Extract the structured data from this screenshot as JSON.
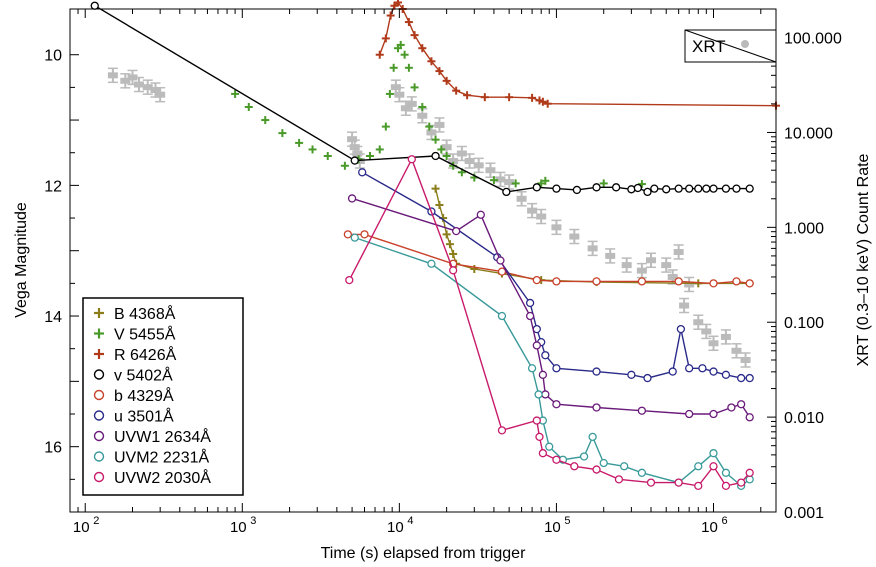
{
  "chart_data": {
    "type": "scatter",
    "xlabel": "Time (s) elapsed from trigger",
    "ylabel_left": "Vega Magnitude",
    "ylabel_right": "XRT (0.3–10 keV) Count Rate",
    "x_scale": "log",
    "x_range": [
      80,
      2500000
    ],
    "y_range_left": [
      17.0,
      9.3
    ],
    "y_range_right_log": [
      0.001,
      200
    ],
    "x_ticks": [
      {
        "v": 100,
        "b": "10",
        "e": "2"
      },
      {
        "v": 1000,
        "b": "10",
        "e": "3"
      },
      {
        "v": 10000,
        "b": "10",
        "e": "4"
      },
      {
        "v": 100000,
        "b": "10",
        "e": "5"
      },
      {
        "v": 1000000,
        "b": "10",
        "e": "6"
      }
    ],
    "y_ticks_left": [
      "10",
      "12",
      "14",
      "16"
    ],
    "y_ticks_right": [
      "100.000",
      "10.000",
      "1.000",
      "0.100",
      "0.010",
      "0.001"
    ],
    "xrt_legend": "XRT",
    "legend_position": "lower-left",
    "series": [
      {
        "name": "B 4368Å",
        "color": "#8B7D1A",
        "marker": "plus",
        "connect": true,
        "points": [
          [
            17000,
            12.05
          ],
          [
            18000,
            12.3
          ],
          [
            19000,
            12.5
          ],
          [
            20000,
            12.75
          ],
          [
            21000,
            12.9
          ],
          [
            22000,
            13.05
          ],
          [
            23000,
            13.2
          ],
          [
            30000,
            13.28
          ],
          [
            45000,
            13.35
          ],
          [
            80000,
            13.45
          ],
          [
            180000,
            13.48
          ],
          [
            800000,
            13.5
          ],
          [
            1700000,
            13.5
          ]
        ]
      },
      {
        "name": "V 5455Å",
        "color": "#4A9A2A",
        "marker": "plus",
        "connect": false,
        "points": [
          [
            900,
            10.6
          ],
          [
            1100,
            10.8
          ],
          [
            1400,
            11.0
          ],
          [
            1800,
            11.2
          ],
          [
            2300,
            11.35
          ],
          [
            2800,
            11.45
          ],
          [
            3500,
            11.55
          ],
          [
            4500,
            11.7
          ],
          [
            5500,
            11.6
          ],
          [
            6500,
            11.55
          ],
          [
            7500,
            11.45
          ],
          [
            8200,
            11.1
          ],
          [
            8700,
            10.6
          ],
          [
            9200,
            10.2
          ],
          [
            9800,
            9.9
          ],
          [
            10200,
            9.85
          ],
          [
            10800,
            10.0
          ],
          [
            11500,
            10.2
          ],
          [
            12500,
            10.5
          ],
          [
            14000,
            10.8
          ],
          [
            15500,
            11.1
          ],
          [
            17000,
            11.3
          ],
          [
            18500,
            11.45
          ],
          [
            20000,
            11.55
          ],
          [
            22000,
            11.7
          ],
          [
            25000,
            11.8
          ],
          [
            30000,
            11.88
          ],
          [
            40000,
            11.92
          ],
          [
            55000,
            11.97
          ],
          [
            80000,
            11.97
          ],
          [
            85000,
            11.93
          ],
          [
            200000,
            11.97
          ],
          [
            350000,
            11.98
          ]
        ]
      },
      {
        "name": "R 6426Å",
        "color": "#B03A1A",
        "marker": "plus",
        "connect": true,
        "points": [
          [
            7500,
            10.0
          ],
          [
            8200,
            9.75
          ],
          [
            8800,
            9.4
          ],
          [
            9300,
            9.25
          ],
          [
            9800,
            9.2
          ],
          [
            10500,
            9.3
          ],
          [
            11500,
            9.5
          ],
          [
            12500,
            9.7
          ],
          [
            14000,
            9.9
          ],
          [
            16000,
            10.1
          ],
          [
            18000,
            10.25
          ],
          [
            20000,
            10.4
          ],
          [
            23000,
            10.55
          ],
          [
            27000,
            10.62
          ],
          [
            35000,
            10.65
          ],
          [
            50000,
            10.65
          ],
          [
            70000,
            10.66
          ],
          [
            78000,
            10.7
          ],
          [
            82000,
            10.72
          ],
          [
            88000,
            10.75
          ],
          [
            2500000,
            10.78
          ]
        ]
      },
      {
        "name": "v 5402Å",
        "color": "#000000",
        "marker": "circle",
        "connect": true,
        "points": [
          [
            115,
            9.25
          ],
          [
            5200,
            11.62
          ],
          [
            17000,
            11.55
          ],
          [
            48000,
            12.1
          ],
          [
            75000,
            12.03
          ],
          [
            100000,
            12.05
          ],
          [
            135000,
            12.07
          ],
          [
            180000,
            12.03
          ],
          [
            240000,
            12.03
          ],
          [
            300000,
            12.06
          ],
          [
            330000,
            12.04
          ],
          [
            380000,
            12.1
          ],
          [
            420000,
            12.05
          ],
          [
            500000,
            12.06
          ],
          [
            600000,
            12.05
          ],
          [
            700000,
            12.05
          ],
          [
            800000,
            12.05
          ],
          [
            900000,
            12.05
          ],
          [
            1000000,
            12.05
          ],
          [
            1200000,
            12.05
          ],
          [
            1400000,
            12.05
          ],
          [
            1700000,
            12.05
          ]
        ]
      },
      {
        "name": "b 4329Å",
        "color": "#C8402A",
        "marker": "circle",
        "connect": true,
        "points": [
          [
            4700,
            12.75
          ],
          [
            6000,
            12.75
          ],
          [
            22000,
            13.2
          ],
          [
            45000,
            13.32
          ],
          [
            75000,
            13.45
          ],
          [
            100000,
            13.47
          ],
          [
            180000,
            13.47
          ],
          [
            350000,
            13.47
          ],
          [
            600000,
            13.47
          ],
          [
            1000000,
            13.5
          ],
          [
            1400000,
            13.47
          ],
          [
            1700000,
            13.5
          ]
        ]
      },
      {
        "name": "u 3501Å",
        "color": "#2A2A8A",
        "marker": "circle",
        "connect": true,
        "points": [
          [
            5800,
            11.8
          ],
          [
            16000,
            12.4
          ],
          [
            42000,
            13.1
          ],
          [
            68000,
            13.8
          ],
          [
            75000,
            14.2
          ],
          [
            80000,
            14.4
          ],
          [
            85000,
            14.6
          ],
          [
            100000,
            14.8
          ],
          [
            180000,
            14.85
          ],
          [
            300000,
            14.9
          ],
          [
            380000,
            14.95
          ],
          [
            550000,
            14.85
          ],
          [
            620000,
            14.2
          ],
          [
            700000,
            14.8
          ],
          [
            850000,
            14.8
          ],
          [
            1000000,
            14.85
          ],
          [
            1200000,
            14.9
          ],
          [
            1500000,
            14.95
          ],
          [
            1700000,
            14.95
          ]
        ]
      },
      {
        "name": "UVW1 2634Å",
        "color": "#6A1A7A",
        "marker": "circle",
        "connect": true,
        "points": [
          [
            5000,
            12.2
          ],
          [
            23000,
            12.7
          ],
          [
            33000,
            12.45
          ],
          [
            44000,
            13.15
          ],
          [
            68000,
            14.0
          ],
          [
            75000,
            14.45
          ],
          [
            82000,
            14.9
          ],
          [
            85000,
            15.2
          ],
          [
            100000,
            15.35
          ],
          [
            180000,
            15.4
          ],
          [
            350000,
            15.45
          ],
          [
            700000,
            15.5
          ],
          [
            1000000,
            15.5
          ],
          [
            1300000,
            15.4
          ],
          [
            1500000,
            15.35
          ],
          [
            1700000,
            15.55
          ]
        ]
      },
      {
        "name": "UVM2 2231Å",
        "color": "#3A9A9A",
        "marker": "circle",
        "connect": true,
        "points": [
          [
            5200,
            12.8
          ],
          [
            16000,
            13.2
          ],
          [
            45000,
            14.0
          ],
          [
            70000,
            14.8
          ],
          [
            77000,
            15.2
          ],
          [
            82000,
            15.6
          ],
          [
            90000,
            16.0
          ],
          [
            110000,
            16.2
          ],
          [
            150000,
            16.15
          ],
          [
            170000,
            15.85
          ],
          [
            200000,
            16.25
          ],
          [
            270000,
            16.3
          ],
          [
            350000,
            16.4
          ],
          [
            600000,
            16.55
          ],
          [
            800000,
            16.3
          ],
          [
            1000000,
            16.1
          ],
          [
            1200000,
            16.4
          ],
          [
            1500000,
            16.6
          ],
          [
            1700000,
            16.5
          ]
        ]
      },
      {
        "name": "UVW2 2030Å",
        "color": "#C81A6A",
        "marker": "circle",
        "connect": true,
        "points": [
          [
            4800,
            13.45
          ],
          [
            12000,
            11.6
          ],
          [
            22000,
            13.3
          ],
          [
            45000,
            15.75
          ],
          [
            75000,
            15.6
          ],
          [
            78000,
            15.85
          ],
          [
            82000,
            16.1
          ],
          [
            100000,
            16.2
          ],
          [
            130000,
            16.3
          ],
          [
            180000,
            16.35
          ],
          [
            250000,
            16.5
          ],
          [
            400000,
            16.55
          ],
          [
            600000,
            16.55
          ],
          [
            800000,
            16.6
          ],
          [
            1000000,
            16.3
          ],
          [
            1200000,
            16.6
          ],
          [
            1500000,
            16.55
          ],
          [
            1700000,
            16.4
          ]
        ]
      }
    ],
    "xrt": {
      "color": "#BBBBBB",
      "points": [
        [
          150,
          40
        ],
        [
          180,
          35
        ],
        [
          200,
          38
        ],
        [
          220,
          32
        ],
        [
          250,
          30
        ],
        [
          280,
          28
        ],
        [
          300,
          25
        ],
        [
          5000,
          8.5
        ],
        [
          5200,
          7
        ],
        [
          5400,
          6
        ],
        [
          5600,
          5
        ],
        [
          9500,
          30
        ],
        [
          10000,
          25
        ],
        [
          11000,
          18
        ],
        [
          12000,
          20
        ],
        [
          14000,
          15
        ],
        [
          16000,
          10
        ],
        [
          18000,
          12
        ],
        [
          20000,
          7
        ],
        [
          22000,
          5
        ],
        [
          25000,
          6
        ],
        [
          28000,
          5
        ],
        [
          32000,
          4.5
        ],
        [
          38000,
          4
        ],
        [
          44000,
          3.2
        ],
        [
          50000,
          3
        ],
        [
          60000,
          2
        ],
        [
          70000,
          1.5
        ],
        [
          80000,
          1.3
        ],
        [
          100000,
          1.0
        ],
        [
          130000,
          0.8
        ],
        [
          170000,
          0.6
        ],
        [
          220000,
          0.5
        ],
        [
          280000,
          0.4
        ],
        [
          350000,
          0.35
        ],
        [
          400000,
          0.45
        ],
        [
          500000,
          0.4
        ],
        [
          550000,
          0.3
        ],
        [
          600000,
          0.55
        ],
        [
          650000,
          0.15
        ],
        [
          700000,
          0.25
        ],
        [
          800000,
          0.1
        ],
        [
          900000,
          0.08
        ],
        [
          1000000,
          0.06
        ],
        [
          1200000,
          0.07
        ],
        [
          1400000,
          0.05
        ],
        [
          1600000,
          0.04
        ]
      ]
    }
  }
}
